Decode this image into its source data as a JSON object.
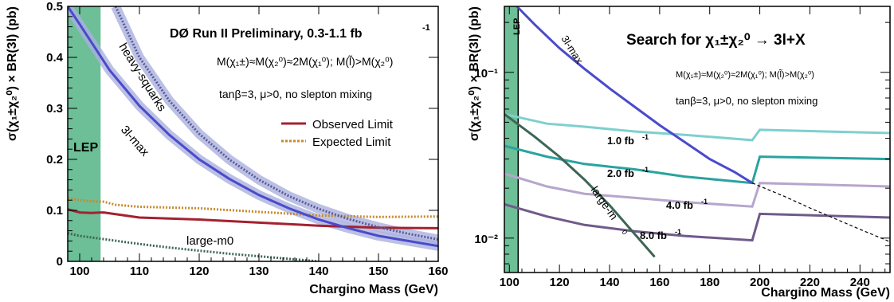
{
  "chart_data": [
    {
      "type": "line",
      "title": "DØ Run II Preliminary, 0.3-1.1 fb",
      "title_superscript": "-1",
      "xlabel": "Chargino Mass (GeV)",
      "ylabel": "σ(χ₁±χ₂⁰) × BR(3l) (pb)",
      "xlim": [
        98,
        160
      ],
      "ylim": [
        0,
        0.5
      ],
      "x_ticks": [
        "100",
        "110",
        "120",
        "130",
        "140",
        "150",
        "160"
      ],
      "y_ticks": [
        "0",
        "0.1",
        "0.2",
        "0.3",
        "0.4",
        "0.5"
      ],
      "mass_relation": "M(χ₁±)≈M(χ₂⁰)≈2M(χ₁⁰); M(l̃)>M(χ₂⁰)",
      "params": "tanβ=3, μ>0, no slepton mixing",
      "excluded_region": {
        "label": "LEP",
        "x_max": 103.5
      },
      "legend_position": "right",
      "series": [
        {
          "name": "Observed Limit",
          "color": "#a3222f",
          "style": "solid",
          "x": [
            98,
            100,
            102,
            104,
            110,
            120,
            130,
            140,
            150,
            160
          ],
          "y": [
            0.102,
            0.096,
            0.095,
            0.096,
            0.086,
            0.082,
            0.076,
            0.07,
            0.066,
            0.065
          ]
        },
        {
          "name": "Expected Limit",
          "color": "#c88a2e",
          "style": "dotted",
          "x": [
            98,
            100,
            102,
            104,
            106,
            110,
            120,
            130,
            140,
            150,
            160
          ],
          "y": [
            0.124,
            0.12,
            0.118,
            0.117,
            0.111,
            0.107,
            0.104,
            0.097,
            0.09,
            0.087,
            0.088
          ]
        },
        {
          "label": "3l-max",
          "color": "#4a4acc",
          "style": "solid",
          "band": true,
          "x": [
            98,
            100,
            105,
            110,
            115,
            120,
            125,
            130,
            135,
            140,
            145,
            150,
            155,
            160
          ],
          "y": [
            0.5,
            0.465,
            0.375,
            0.305,
            0.248,
            0.2,
            0.162,
            0.13,
            0.104,
            0.082,
            0.065,
            0.05,
            0.04,
            0.03
          ]
        },
        {
          "label": "heavy-squarks",
          "color": "#5a5a9a",
          "style": "dotted",
          "band": true,
          "x": [
            106,
            110,
            115,
            120,
            125,
            130,
            135,
            140,
            145,
            150,
            155,
            160
          ],
          "y": [
            0.5,
            0.4,
            0.315,
            0.25,
            0.2,
            0.16,
            0.128,
            0.103,
            0.083,
            0.067,
            0.054,
            0.043
          ]
        },
        {
          "label": "large-m0",
          "color": "#3d6655",
          "style": "dotted",
          "x": [
            98,
            100,
            105,
            110,
            115,
            120,
            125,
            130,
            135,
            140
          ],
          "y": [
            0.055,
            0.05,
            0.042,
            0.034,
            0.027,
            0.021,
            0.015,
            0.01,
            0.005,
            0.0
          ]
        }
      ]
    },
    {
      "type": "line",
      "title": "Search for χ₁±χ₂⁰ → 3l+X",
      "xlabel": "Chargino Mass (GeV)",
      "ylabel": "σ(χ₁±χ₂⁰) × BR(3l) (pb)",
      "xlim": [
        98,
        252
      ],
      "ylim": [
        0.0062,
        0.25
      ],
      "y_scale": "log",
      "x_ticks": [
        "100",
        "120",
        "140",
        "160",
        "180",
        "200",
        "220",
        "240"
      ],
      "y_ticks": [
        "10⁻²",
        "10⁻¹"
      ],
      "mass_relation": "M(χ₁±)≈M(χ₂⁰)≈2M(χ₁⁰); M(l̃)>M(χ₂⁰)",
      "params": "tanβ=3, μ>0, no slepton mixing",
      "excluded_region": {
        "label": "LEP",
        "x_max": 103.5
      },
      "series": [
        {
          "label": "1.0 fb",
          "label_sup": "-1",
          "color": "#7fcfcf",
          "x": [
            98,
            115,
            130,
            150,
            170,
            197,
            200,
            252
          ],
          "y": [
            0.056,
            0.049,
            0.047,
            0.044,
            0.042,
            0.039,
            0.045,
            0.043
          ]
        },
        {
          "label": "2.0 fb",
          "label_sup": "-1",
          "color": "#2aa39f",
          "x": [
            98,
            115,
            130,
            150,
            170,
            197,
            200,
            252
          ],
          "y": [
            0.036,
            0.031,
            0.028,
            0.026,
            0.0235,
            0.0215,
            0.031,
            0.03
          ]
        },
        {
          "label": "4.0 fb",
          "label_sup": "-1",
          "color": "#b7a6cc",
          "x": [
            98,
            115,
            130,
            150,
            170,
            197,
            200,
            252
          ],
          "y": [
            0.0245,
            0.0205,
            0.0185,
            0.0175,
            0.0165,
            0.0155,
            0.0215,
            0.0205
          ]
        },
        {
          "label": "8.0 fb",
          "label_sup": "-1",
          "color": "#6f5a8a",
          "x": [
            98,
            115,
            130,
            150,
            170,
            197,
            200,
            252
          ],
          "y": [
            0.016,
            0.0135,
            0.012,
            0.011,
            0.0103,
            0.0097,
            0.014,
            0.0133
          ]
        },
        {
          "label": "3l-max",
          "color": "#4a4acc",
          "x": [
            103,
            110,
            120,
            130,
            140,
            150,
            160,
            170,
            180,
            190,
            197
          ],
          "y": [
            0.25,
            0.195,
            0.14,
            0.105,
            0.08,
            0.062,
            0.048,
            0.038,
            0.03,
            0.025,
            0.0215
          ]
        },
        {
          "label": "",
          "color": "#000000",
          "style": "dashed",
          "x": [
            197,
            210,
            220,
            230,
            240,
            252
          ],
          "y": [
            0.0215,
            0.0178,
            0.0152,
            0.0131,
            0.0113,
            0.0095
          ]
        },
        {
          "label": "large-m",
          "label_sub": "0",
          "color": "#3d6655",
          "x": [
            98,
            110,
            120,
            130,
            140,
            150,
            158
          ],
          "y": [
            0.056,
            0.041,
            0.031,
            0.0225,
            0.0158,
            0.0106,
            0.0077
          ]
        }
      ]
    }
  ]
}
